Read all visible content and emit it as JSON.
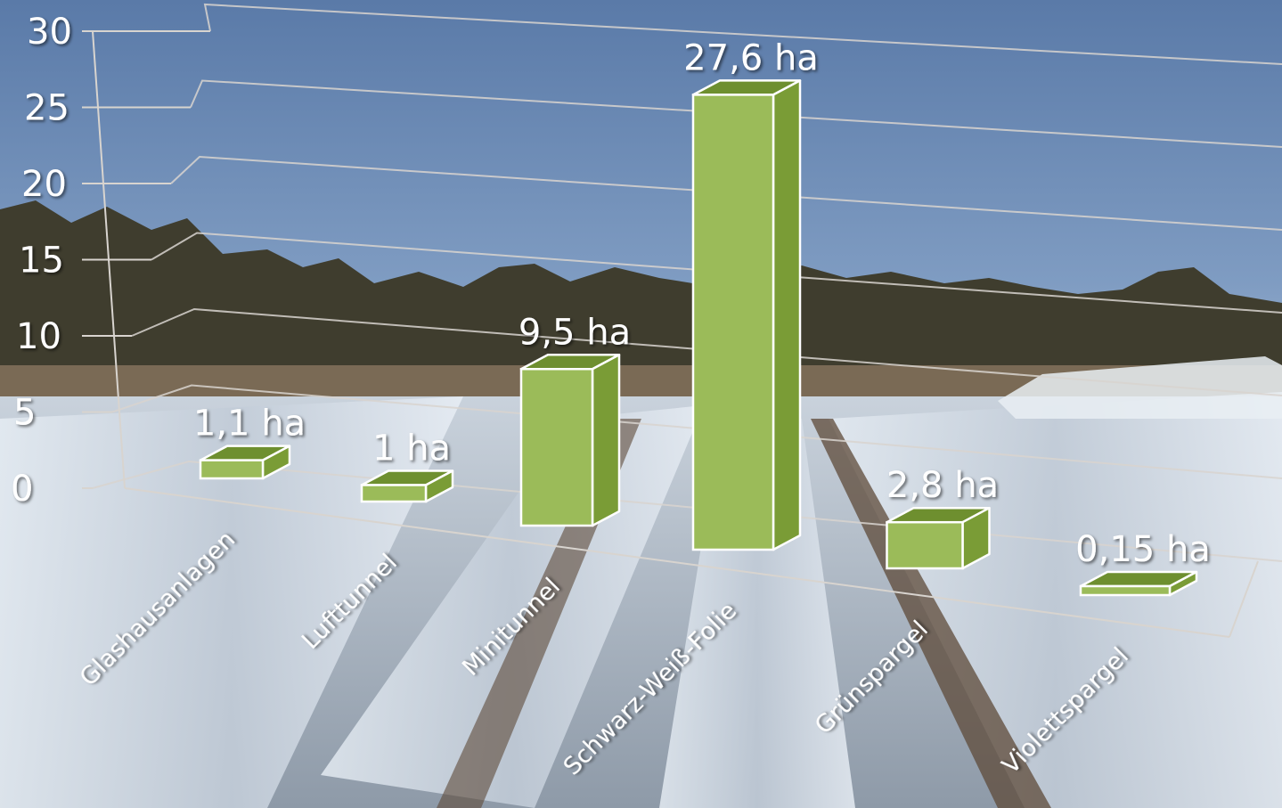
{
  "chart_data": {
    "type": "bar",
    "categories": [
      "Glashausanlagen",
      "Lufttunnel",
      "Minitunnel",
      "Schwarz-Weiß-Folie",
      "Grünspargel",
      "Violettspargel"
    ],
    "values": [
      1.1,
      1,
      9.5,
      27.6,
      2.8,
      0.15
    ],
    "value_labels": [
      "1,1 ha",
      "1 ha",
      "9,5 ha",
      "27,6 ha",
      "2,8 ha",
      "0,15 ha"
    ],
    "yticks": [
      "0",
      "5",
      "10",
      "15",
      "20",
      "25",
      "30"
    ],
    "ylim": [
      0,
      30
    ],
    "grid": true,
    "title": "",
    "xlabel": "",
    "ylabel": "",
    "colors": {
      "bar_front": "#9bbb59",
      "bar_side": "#7a9c36",
      "bar_top": "#6e8f2f",
      "bar_edge": "#ffffff",
      "grid": "#d8d4cf"
    }
  }
}
